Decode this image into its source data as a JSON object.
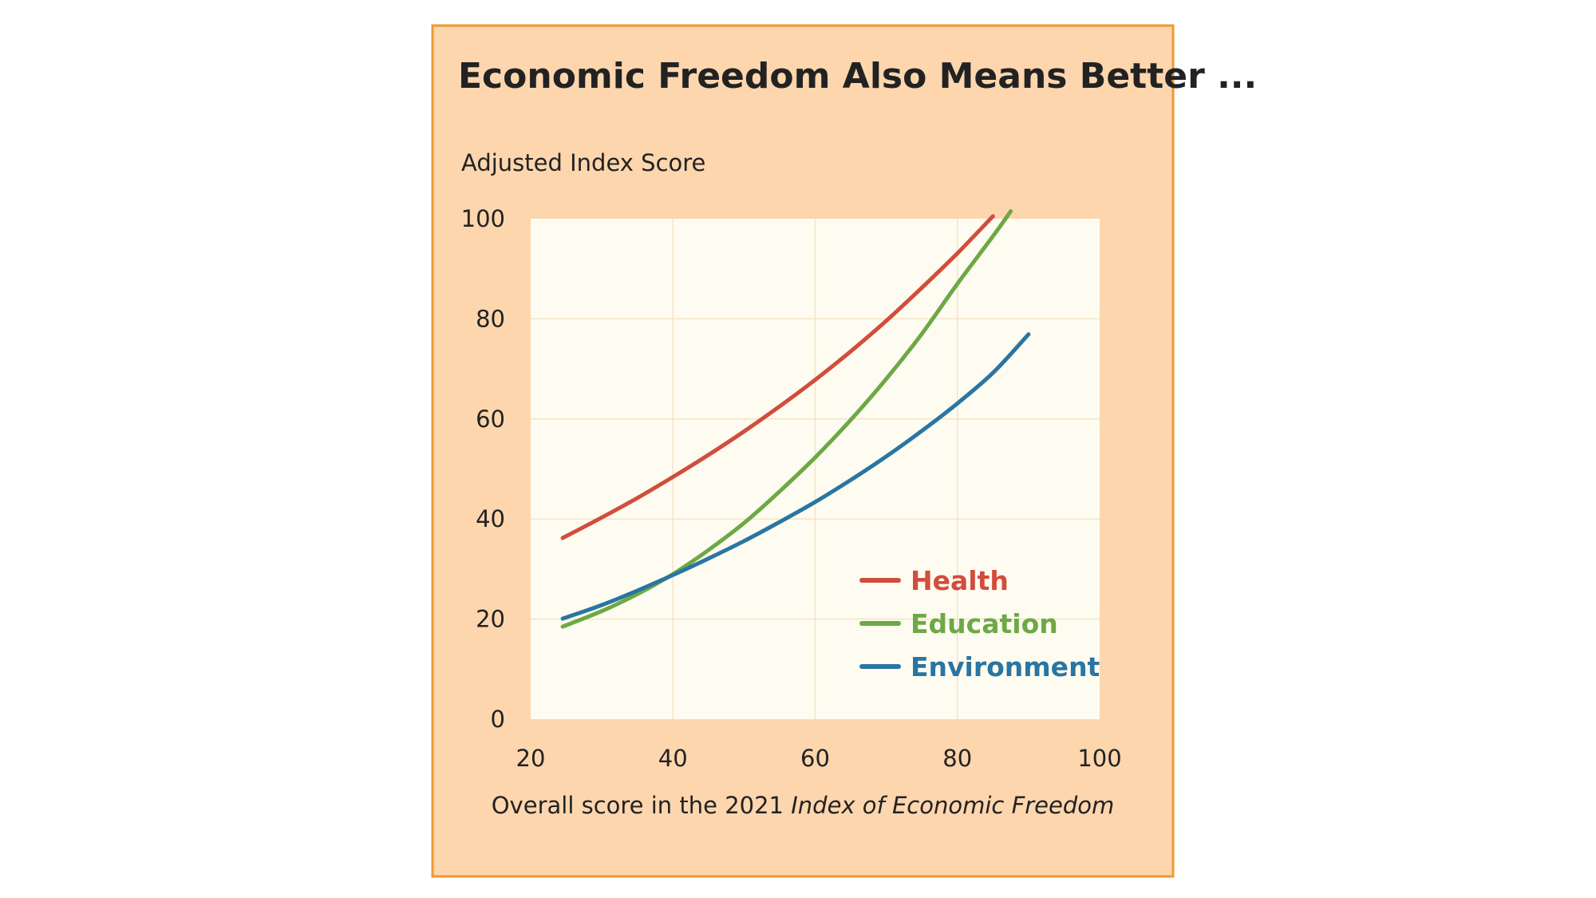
{
  "chart_data": {
    "type": "line",
    "title": "Economic Freedom Also Means Better ...",
    "ylabel": "Adjusted Index Score",
    "xlabel_prefix": "Overall score in the 2021 ",
    "xlabel_italic": "Index of Economic Freedom",
    "xlim": [
      20,
      100
    ],
    "ylim": [
      0,
      100
    ],
    "x_ticks": [
      20,
      40,
      60,
      80,
      100
    ],
    "y_ticks": [
      0,
      20,
      40,
      60,
      80,
      100
    ],
    "grid": true,
    "legend_position": "lower-right",
    "colors": {
      "frame_background": "#fdd6ae",
      "frame_border": "#f0982f",
      "plot_background": "#fefcf1",
      "grid": "#f4e4c6"
    },
    "series": [
      {
        "name": "Health",
        "color": "#d24d3d",
        "points": [
          [
            24.5,
            36.2
          ],
          [
            30,
            40.3
          ],
          [
            35,
            44.2
          ],
          [
            40,
            48.4
          ],
          [
            45,
            52.8
          ],
          [
            50,
            57.5
          ],
          [
            55,
            62.5
          ],
          [
            60,
            67.8
          ],
          [
            65,
            73.5
          ],
          [
            70,
            79.6
          ],
          [
            75,
            86.2
          ],
          [
            80,
            93.1
          ],
          [
            85,
            100.5
          ]
        ]
      },
      {
        "name": "Education",
        "color": "#6ea845",
        "points": [
          [
            24.5,
            18.5
          ],
          [
            30,
            21.6
          ],
          [
            35,
            25.0
          ],
          [
            40,
            29.0
          ],
          [
            45,
            33.8
          ],
          [
            50,
            39.2
          ],
          [
            55,
            45.5
          ],
          [
            60,
            52.3
          ],
          [
            65,
            59.8
          ],
          [
            70,
            68.0
          ],
          [
            75,
            77.0
          ],
          [
            80,
            87.0
          ],
          [
            85,
            96.5
          ],
          [
            87.5,
            101.5
          ]
        ]
      },
      {
        "name": "Environment",
        "color": "#2a75a2",
        "points": [
          [
            24.5,
            20.1
          ],
          [
            30,
            22.8
          ],
          [
            35,
            25.7
          ],
          [
            40,
            28.8
          ],
          [
            45,
            32.1
          ],
          [
            50,
            35.6
          ],
          [
            55,
            39.4
          ],
          [
            60,
            43.4
          ],
          [
            65,
            47.8
          ],
          [
            70,
            52.5
          ],
          [
            75,
            57.6
          ],
          [
            80,
            63.1
          ],
          [
            85,
            69.2
          ],
          [
            90,
            76.9
          ]
        ]
      }
    ]
  }
}
